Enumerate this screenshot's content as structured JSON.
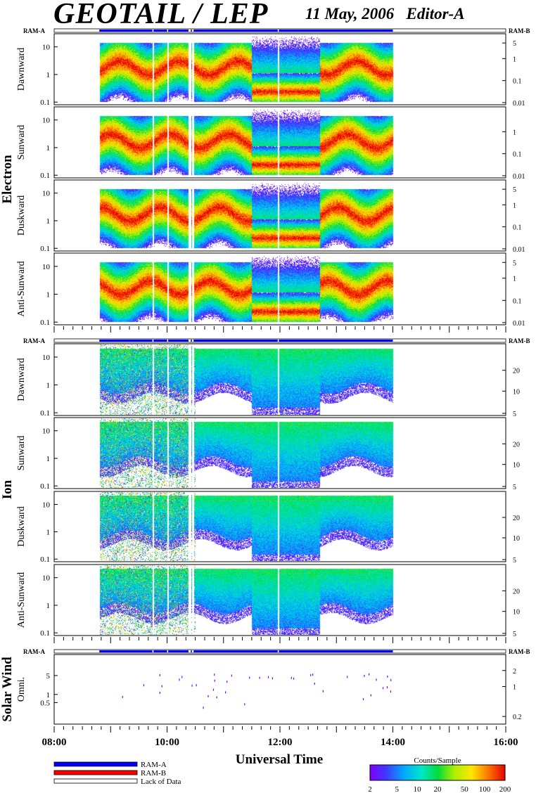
{
  "header": {
    "title": "GEOTAIL / LEP",
    "subtitle": "11 May, 2006   Editor-A"
  },
  "ram_a_label": "RAM-A",
  "ram_b_label": "RAM-B",
  "groups": [
    {
      "label": "Electron",
      "panels": [
        {
          "name": "Dawnward",
          "left_ticks": [
            "10",
            "1",
            "0.1"
          ],
          "right_ticks": [
            "5",
            "1",
            "0.1",
            "0.01"
          ]
        },
        {
          "name": "Sunward",
          "left_ticks": [
            "10",
            "1",
            "0.1"
          ],
          "right_ticks": [
            "1",
            "0.1",
            "0.01"
          ]
        },
        {
          "name": "Duskward",
          "left_ticks": [
            "10",
            "1",
            "0.1"
          ],
          "right_ticks": [
            "5",
            "1",
            "0.1",
            "0.01"
          ]
        },
        {
          "name": "Anti-Sunward",
          "left_ticks": [
            "10",
            "1",
            "0.1"
          ],
          "right_ticks": [
            "5",
            "1",
            "0.1",
            "0.01"
          ]
        }
      ]
    },
    {
      "label": "Ion",
      "panels": [
        {
          "name": "Dawnward",
          "left_ticks": [
            "10",
            "1",
            "0.1"
          ],
          "right_ticks": [
            "20",
            "10",
            "5"
          ]
        },
        {
          "name": "Sunward",
          "left_ticks": [
            "10",
            "1",
            "0.1"
          ],
          "right_ticks": [
            "20",
            "10",
            "5"
          ]
        },
        {
          "name": "Duskward",
          "left_ticks": [
            "10",
            "1",
            "0.1"
          ],
          "right_ticks": [
            "20",
            "10",
            "5"
          ]
        },
        {
          "name": "Anti-Sunward",
          "left_ticks": [
            "10",
            "1",
            "0.1"
          ],
          "right_ticks": [
            "20",
            "10",
            "5"
          ]
        }
      ]
    },
    {
      "label": "Solar Wind",
      "panels": [
        {
          "name": "Omni.",
          "left_ticks": [
            "5",
            "1",
            "0.5"
          ],
          "right_ticks": [
            "2",
            "1",
            "0.2"
          ]
        }
      ]
    }
  ],
  "time_axis": {
    "label": "Universal Time",
    "ticks": [
      "08:00",
      "10:00",
      "12:00",
      "14:00",
      "16:00"
    ]
  },
  "legend": {
    "items": [
      {
        "label": "RAM-A",
        "color": "#0000ff"
      },
      {
        "label": "RAM-B",
        "color": "#ff0000"
      },
      {
        "label": "Lack of Data",
        "color": "#ffffff"
      }
    ]
  },
  "colorbar": {
    "title": "Counts/Sample",
    "ticks": [
      "2",
      "5",
      "10",
      "20",
      "50",
      "100",
      "200"
    ],
    "range": [
      2,
      200
    ],
    "scale": "log"
  },
  "chart_data": {
    "type": "heatmap",
    "title": "GEOTAIL / LEP",
    "subtitle": "11 May, 2006   Editor-A",
    "xlabel": "Universal Time",
    "x_range": [
      "08:00",
      "16:00"
    ],
    "x_ticks": [
      "08:00",
      "10:00",
      "12:00",
      "14:00",
      "16:00"
    ],
    "data_coverage": [
      "08:48",
      "14:00"
    ],
    "data_gaps": [
      "09:45",
      "10:00",
      "10:20",
      "10:25",
      "10:27",
      "11:57"
    ],
    "y_scale": "log",
    "left_y_range": [
      0.08,
      30
    ],
    "color_scale": {
      "title": "Counts/Sample",
      "min": 2,
      "max": 200,
      "scale": "log"
    },
    "panels": [
      "Electron Dawnward",
      "Electron Sunward",
      "Electron Duskward",
      "Electron Anti-Sunward",
      "Ion Dawnward",
      "Ion Sunward",
      "Ion Duskward",
      "Ion Anti-Sunward",
      "Solar Wind Omni."
    ]
  }
}
